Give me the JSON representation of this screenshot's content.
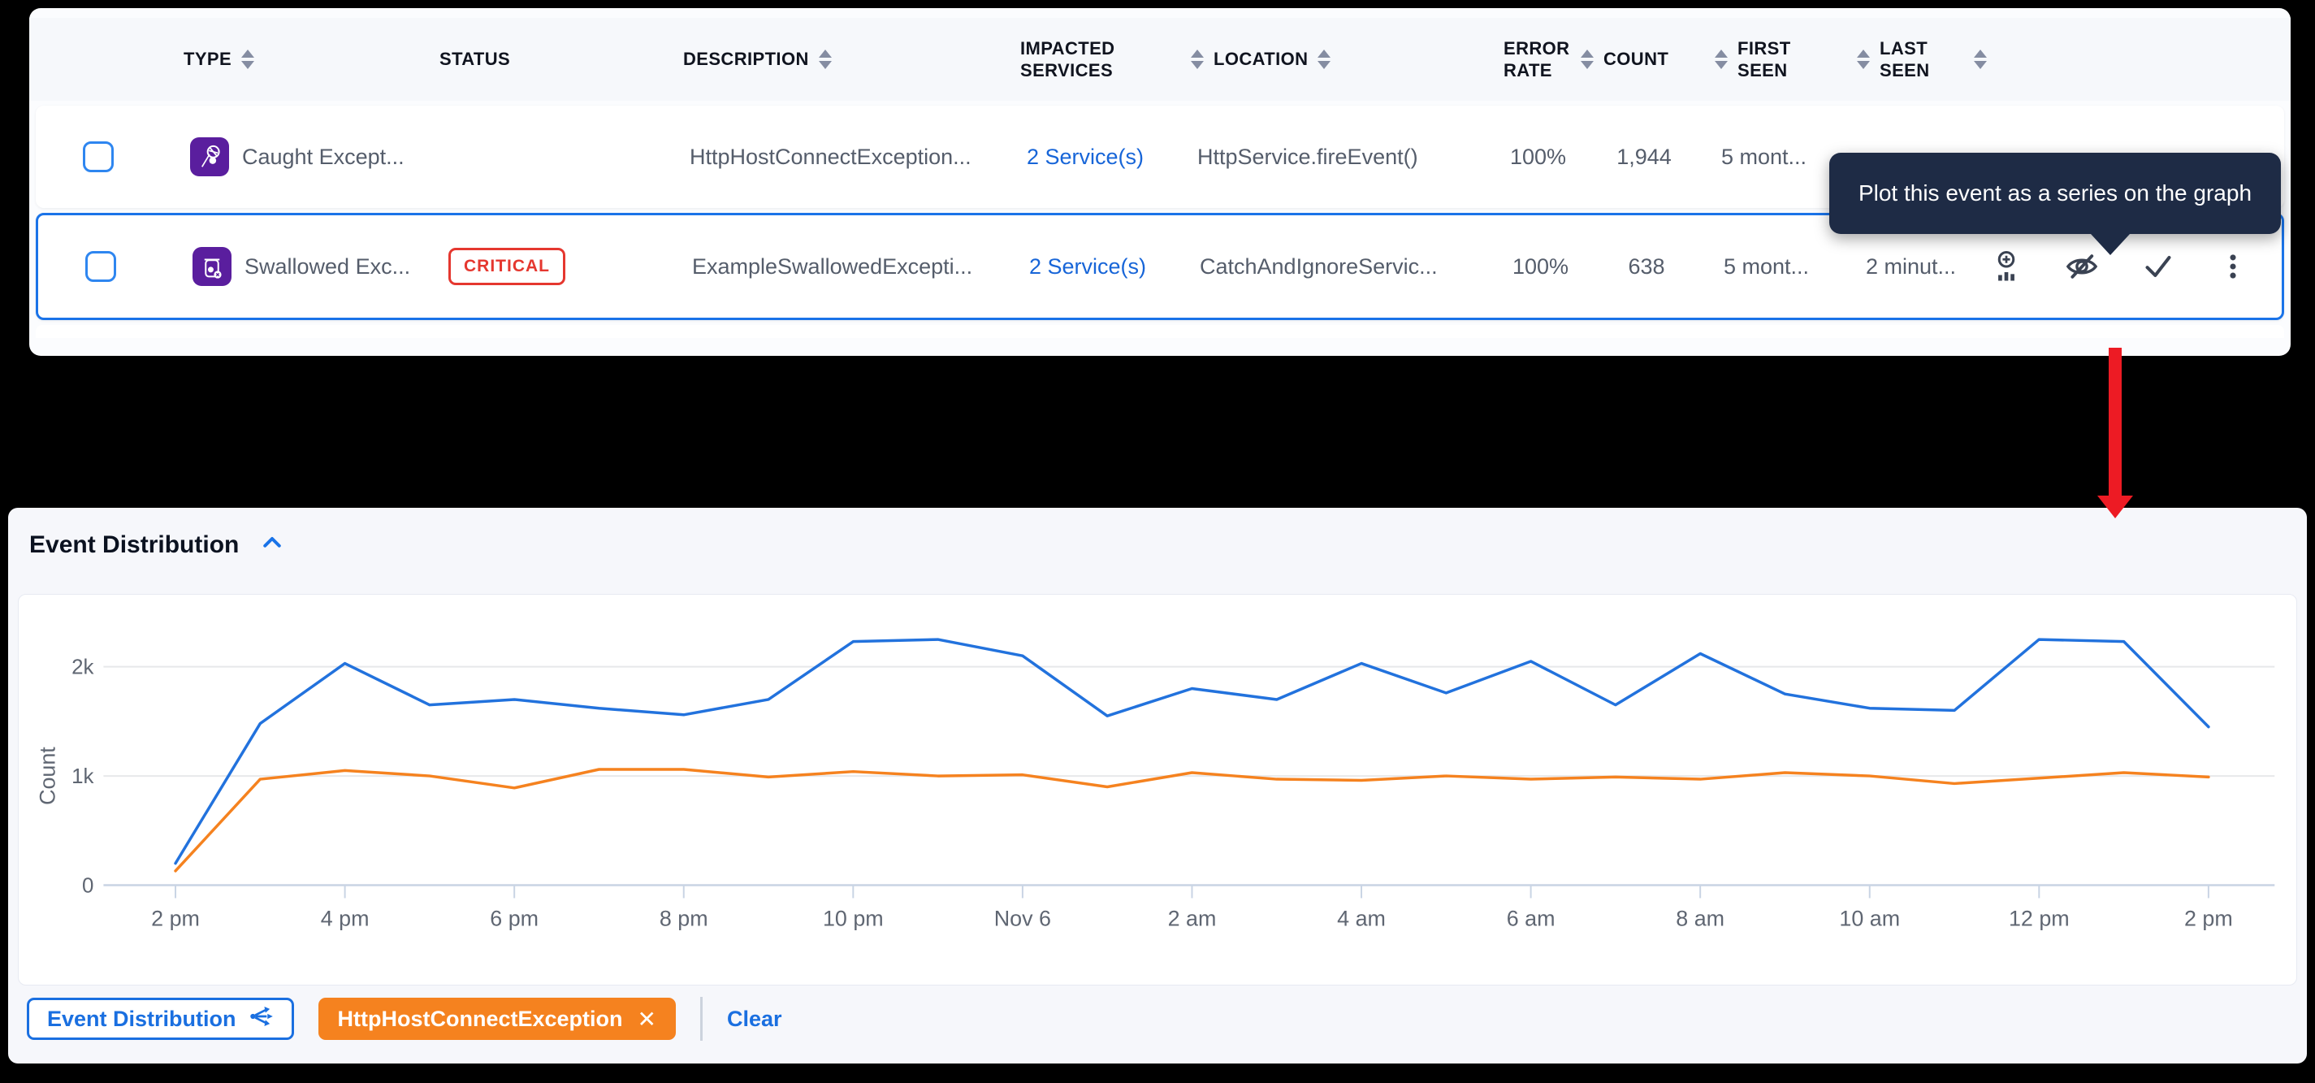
{
  "table": {
    "header": {
      "columns": [
        {
          "label": "TYPE"
        },
        {
          "label": "STATUS"
        },
        {
          "label": "DESCRIPTION"
        },
        {
          "label": "IMPACTED SERVICES"
        },
        {
          "label": "LOCATION"
        },
        {
          "label": "ERROR RATE"
        },
        {
          "label": "COUNT"
        },
        {
          "label": "FIRST SEEN"
        },
        {
          "label": "LAST SEEN"
        }
      ]
    },
    "rows": [
      {
        "type": "Caught Except...",
        "type_icon": "caught-exception-icon",
        "status": "",
        "description": "HttpHostConnectException...",
        "impacted_services": "2 Service(s)",
        "location": "HttpService.fireEvent()",
        "error_rate": "100%",
        "count": "1,944",
        "first_seen": "5 mont...",
        "last_seen": ""
      },
      {
        "type": "Swallowed Exc...",
        "type_icon": "swallowed-exception-icon",
        "status": "CRITICAL",
        "description": "ExampleSwallowedExcepti...",
        "impacted_services": "2 Service(s)",
        "location": "CatchAndIgnoreServic...",
        "error_rate": "100%",
        "count": "638",
        "first_seen": "5 mont...",
        "last_seen": "2 minut..."
      }
    ]
  },
  "tooltip": {
    "text": "Plot this event as a series on the graph"
  },
  "event_distribution": {
    "title": "Event Distribution",
    "legend": {
      "series_button": "Event Distribution",
      "series_tag": "HttpHostConnectException",
      "clear": "Clear"
    }
  },
  "chart_data": {
    "type": "line",
    "title": "Event Distribution",
    "xlabel": "",
    "ylabel": "Count",
    "ylim": [
      0,
      2400
    ],
    "grid": "horizontal",
    "x_tick_labels": [
      "2 pm",
      "4 pm",
      "6 pm",
      "8 pm",
      "10 pm",
      "Nov 6",
      "2 am",
      "4 am",
      "6 am",
      "8 am",
      "10 am",
      "12 pm",
      "2 pm"
    ],
    "y_ticks": [
      {
        "label": "0",
        "value": 0
      },
      {
        "label": "1k",
        "value": 1000
      },
      {
        "label": "2k",
        "value": 2000
      }
    ],
    "series": [
      {
        "name": "Event Distribution",
        "color": "#2272dd",
        "values": [
          200,
          1480,
          2030,
          1650,
          1700,
          1620,
          1560,
          1700,
          2230,
          2250,
          2100,
          1550,
          1800,
          1700,
          2030,
          1760,
          2050,
          1650,
          2120,
          1750,
          1620,
          1600,
          2250,
          2230,
          1450
        ]
      },
      {
        "name": "HttpHostConnectException",
        "color": "#f5821f",
        "values": [
          130,
          970,
          1050,
          1000,
          890,
          1060,
          1060,
          990,
          1040,
          1000,
          1010,
          900,
          1030,
          970,
          960,
          1000,
          970,
          990,
          970,
          1030,
          1000,
          930,
          980,
          1030,
          990
        ]
      }
    ]
  },
  "colors": {
    "accent_blue": "#1a6fe0",
    "series_blue": "#2272dd",
    "series_orange": "#f5821f",
    "critical_red": "#e5372f",
    "icon_purple": "#5a1e9e",
    "tooltip_bg": "#1e2b45",
    "arrow_red": "#ed1b24"
  }
}
